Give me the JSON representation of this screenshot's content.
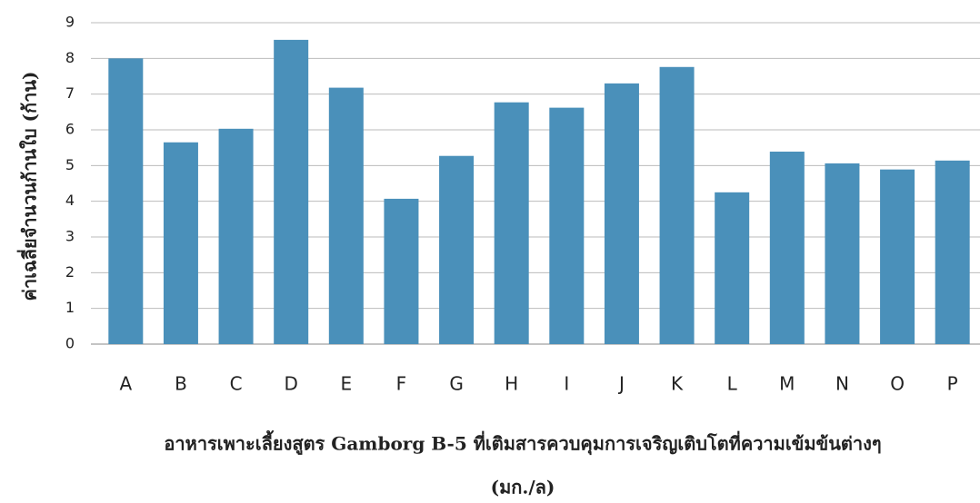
{
  "chart_data": {
    "type": "bar",
    "y_label": "ค่าเฉลี่ยจำนวนก้านใบ (ก้าน)",
    "x_label": [
      "อาหารเพาะเลี้ยงสูตร Gamborg B-5 ที่เติมสารควบคุมการเจริญเติบโตที่ความเข้มข้นต่างๆ",
      "(มก./ล)"
    ],
    "categories": [
      "A",
      "B",
      "C",
      "D",
      "E",
      "F",
      "G",
      "H",
      "I",
      "J",
      "K",
      "L",
      "M",
      "N",
      "O",
      "P"
    ],
    "values": [
      8.0,
      5.65,
      6.03,
      8.52,
      7.18,
      4.07,
      5.27,
      6.77,
      6.62,
      7.3,
      7.76,
      4.25,
      5.39,
      5.06,
      4.89,
      5.14
    ],
    "color": "#4a90ba",
    "ylim": [
      0,
      9
    ],
    "yticks": [
      0,
      1,
      2,
      3,
      4,
      5,
      6,
      7,
      8,
      9
    ],
    "grid": true
  }
}
